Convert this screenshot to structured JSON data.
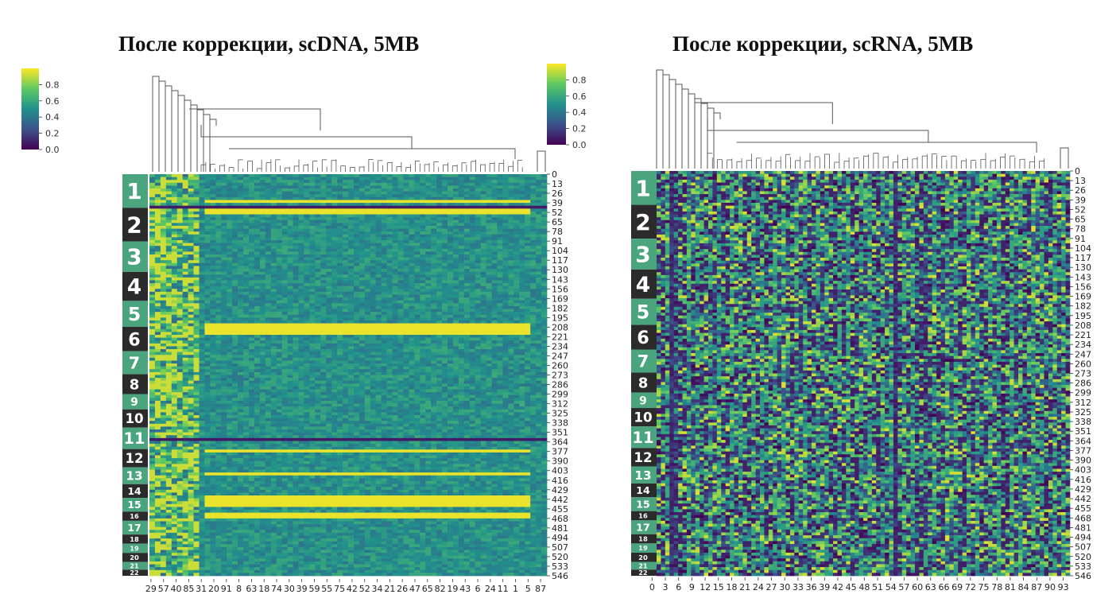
{
  "colors": {
    "viridis": [
      "#440154",
      "#3b528b",
      "#21918c",
      "#5ec962",
      "#fde725"
    ],
    "label_green": "#4aa57f",
    "label_dark": "#2b2b2b",
    "dendrogram": "#555555"
  },
  "chart_data": [
    {
      "type": "heatmap",
      "title": "После коррекции, scDNA, 5MB",
      "colorbars": [
        {
          "position": "left",
          "ticks": [
            "0.0",
            "0.2",
            "0.4",
            "0.6",
            "0.8"
          ]
        },
        {
          "position": "inner",
          "ticks": [
            "0.0",
            "0.2",
            "0.4",
            "0.6",
            "0.8"
          ]
        }
      ],
      "y_tick_labels": [
        "0",
        "13",
        "26",
        "39",
        "52",
        "65",
        "78",
        "91",
        "104",
        "117",
        "130",
        "143",
        "156",
        "169",
        "182",
        "195",
        "208",
        "221",
        "234",
        "247",
        "260",
        "273",
        "286",
        "299",
        "312",
        "325",
        "338",
        "351",
        "364",
        "377",
        "390",
        "403",
        "416",
        "429",
        "442",
        "455",
        "468",
        "481",
        "494",
        "507",
        "520",
        "533",
        "546"
      ],
      "x_tick_labels": [
        "29",
        "57",
        "40",
        "85",
        "31",
        "20",
        "91",
        "8",
        "63",
        "18",
        "74",
        "30",
        "39",
        "59",
        "55",
        "75",
        "42",
        "52",
        "34",
        "21",
        "26",
        "47",
        "65",
        "82",
        "19",
        "43",
        "6",
        "24",
        "11",
        "1",
        "5",
        "87"
      ],
      "cluster_labels": [
        "1",
        "2",
        "3",
        "4",
        "5",
        "6",
        "7",
        "8",
        "9",
        "10",
        "11",
        "12",
        "13",
        "14",
        "15",
        "16",
        "17",
        "18",
        "19",
        "20",
        "21",
        "22"
      ],
      "value_range": [
        0.0,
        1.0
      ]
    },
    {
      "type": "heatmap",
      "title": "После коррекции, scRNA, 5MB",
      "y_tick_labels": [
        "0",
        "13",
        "26",
        "39",
        "52",
        "65",
        "78",
        "91",
        "104",
        "117",
        "130",
        "143",
        "156",
        "169",
        "182",
        "195",
        "208",
        "221",
        "234",
        "247",
        "260",
        "273",
        "286",
        "299",
        "312",
        "325",
        "338",
        "351",
        "364",
        "377",
        "390",
        "403",
        "416",
        "429",
        "442",
        "455",
        "468",
        "481",
        "494",
        "507",
        "520",
        "533",
        "546"
      ],
      "x_tick_labels": [
        "0",
        "3",
        "6",
        "9",
        "12",
        "15",
        "18",
        "21",
        "24",
        "27",
        "30",
        "33",
        "36",
        "39",
        "42",
        "45",
        "48",
        "51",
        "54",
        "57",
        "60",
        "63",
        "66",
        "69",
        "72",
        "75",
        "78",
        "81",
        "84",
        "87",
        "90",
        "93"
      ],
      "cluster_labels": [
        "1",
        "2",
        "3",
        "4",
        "5",
        "6",
        "7",
        "8",
        "9",
        "10",
        "11",
        "12",
        "13",
        "14",
        "15",
        "16",
        "17",
        "18",
        "19",
        "20",
        "21",
        "22"
      ],
      "value_range": [
        0.0,
        1.0
      ]
    }
  ]
}
